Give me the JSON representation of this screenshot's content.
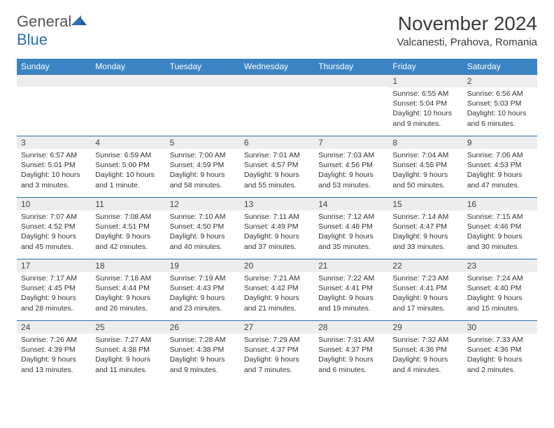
{
  "logo": {
    "text1": "General",
    "text2": "Blue"
  },
  "title": "November 2024",
  "location": "Valcanesti, Prahova, Romania",
  "colors": {
    "header_bg": "#3b84c4",
    "header_text": "#ffffff",
    "daynum_bg": "#ededed",
    "border": "#2b6fb0",
    "logo_blue": "#2b6fb0"
  },
  "weekdays": [
    "Sunday",
    "Monday",
    "Tuesday",
    "Wednesday",
    "Thursday",
    "Friday",
    "Saturday"
  ],
  "weeks": [
    [
      null,
      null,
      null,
      null,
      null,
      {
        "n": "1",
        "sr": "Sunrise: 6:55 AM",
        "ss": "Sunset: 5:04 PM",
        "d1": "Daylight: 10 hours",
        "d2": "and 9 minutes."
      },
      {
        "n": "2",
        "sr": "Sunrise: 6:56 AM",
        "ss": "Sunset: 5:03 PM",
        "d1": "Daylight: 10 hours",
        "d2": "and 6 minutes."
      }
    ],
    [
      {
        "n": "3",
        "sr": "Sunrise: 6:57 AM",
        "ss": "Sunset: 5:01 PM",
        "d1": "Daylight: 10 hours",
        "d2": "and 3 minutes."
      },
      {
        "n": "4",
        "sr": "Sunrise: 6:59 AM",
        "ss": "Sunset: 5:00 PM",
        "d1": "Daylight: 10 hours",
        "d2": "and 1 minute."
      },
      {
        "n": "5",
        "sr": "Sunrise: 7:00 AM",
        "ss": "Sunset: 4:59 PM",
        "d1": "Daylight: 9 hours",
        "d2": "and 58 minutes."
      },
      {
        "n": "6",
        "sr": "Sunrise: 7:01 AM",
        "ss": "Sunset: 4:57 PM",
        "d1": "Daylight: 9 hours",
        "d2": "and 55 minutes."
      },
      {
        "n": "7",
        "sr": "Sunrise: 7:03 AM",
        "ss": "Sunset: 4:56 PM",
        "d1": "Daylight: 9 hours",
        "d2": "and 53 minutes."
      },
      {
        "n": "8",
        "sr": "Sunrise: 7:04 AM",
        "ss": "Sunset: 4:55 PM",
        "d1": "Daylight: 9 hours",
        "d2": "and 50 minutes."
      },
      {
        "n": "9",
        "sr": "Sunrise: 7:06 AM",
        "ss": "Sunset: 4:53 PM",
        "d1": "Daylight: 9 hours",
        "d2": "and 47 minutes."
      }
    ],
    [
      {
        "n": "10",
        "sr": "Sunrise: 7:07 AM",
        "ss": "Sunset: 4:52 PM",
        "d1": "Daylight: 9 hours",
        "d2": "and 45 minutes."
      },
      {
        "n": "11",
        "sr": "Sunrise: 7:08 AM",
        "ss": "Sunset: 4:51 PM",
        "d1": "Daylight: 9 hours",
        "d2": "and 42 minutes."
      },
      {
        "n": "12",
        "sr": "Sunrise: 7:10 AM",
        "ss": "Sunset: 4:50 PM",
        "d1": "Daylight: 9 hours",
        "d2": "and 40 minutes."
      },
      {
        "n": "13",
        "sr": "Sunrise: 7:11 AM",
        "ss": "Sunset: 4:49 PM",
        "d1": "Daylight: 9 hours",
        "d2": "and 37 minutes."
      },
      {
        "n": "14",
        "sr": "Sunrise: 7:12 AM",
        "ss": "Sunset: 4:48 PM",
        "d1": "Daylight: 9 hours",
        "d2": "and 35 minutes."
      },
      {
        "n": "15",
        "sr": "Sunrise: 7:14 AM",
        "ss": "Sunset: 4:47 PM",
        "d1": "Daylight: 9 hours",
        "d2": "and 33 minutes."
      },
      {
        "n": "16",
        "sr": "Sunrise: 7:15 AM",
        "ss": "Sunset: 4:46 PM",
        "d1": "Daylight: 9 hours",
        "d2": "and 30 minutes."
      }
    ],
    [
      {
        "n": "17",
        "sr": "Sunrise: 7:17 AM",
        "ss": "Sunset: 4:45 PM",
        "d1": "Daylight: 9 hours",
        "d2": "and 28 minutes."
      },
      {
        "n": "18",
        "sr": "Sunrise: 7:18 AM",
        "ss": "Sunset: 4:44 PM",
        "d1": "Daylight: 9 hours",
        "d2": "and 26 minutes."
      },
      {
        "n": "19",
        "sr": "Sunrise: 7:19 AM",
        "ss": "Sunset: 4:43 PM",
        "d1": "Daylight: 9 hours",
        "d2": "and 23 minutes."
      },
      {
        "n": "20",
        "sr": "Sunrise: 7:21 AM",
        "ss": "Sunset: 4:42 PM",
        "d1": "Daylight: 9 hours",
        "d2": "and 21 minutes."
      },
      {
        "n": "21",
        "sr": "Sunrise: 7:22 AM",
        "ss": "Sunset: 4:41 PM",
        "d1": "Daylight: 9 hours",
        "d2": "and 19 minutes."
      },
      {
        "n": "22",
        "sr": "Sunrise: 7:23 AM",
        "ss": "Sunset: 4:41 PM",
        "d1": "Daylight: 9 hours",
        "d2": "and 17 minutes."
      },
      {
        "n": "23",
        "sr": "Sunrise: 7:24 AM",
        "ss": "Sunset: 4:40 PM",
        "d1": "Daylight: 9 hours",
        "d2": "and 15 minutes."
      }
    ],
    [
      {
        "n": "24",
        "sr": "Sunrise: 7:26 AM",
        "ss": "Sunset: 4:39 PM",
        "d1": "Daylight: 9 hours",
        "d2": "and 13 minutes."
      },
      {
        "n": "25",
        "sr": "Sunrise: 7:27 AM",
        "ss": "Sunset: 4:38 PM",
        "d1": "Daylight: 9 hours",
        "d2": "and 11 minutes."
      },
      {
        "n": "26",
        "sr": "Sunrise: 7:28 AM",
        "ss": "Sunset: 4:38 PM",
        "d1": "Daylight: 9 hours",
        "d2": "and 9 minutes."
      },
      {
        "n": "27",
        "sr": "Sunrise: 7:29 AM",
        "ss": "Sunset: 4:37 PM",
        "d1": "Daylight: 9 hours",
        "d2": "and 7 minutes."
      },
      {
        "n": "28",
        "sr": "Sunrise: 7:31 AM",
        "ss": "Sunset: 4:37 PM",
        "d1": "Daylight: 9 hours",
        "d2": "and 6 minutes."
      },
      {
        "n": "29",
        "sr": "Sunrise: 7:32 AM",
        "ss": "Sunset: 4:36 PM",
        "d1": "Daylight: 9 hours",
        "d2": "and 4 minutes."
      },
      {
        "n": "30",
        "sr": "Sunrise: 7:33 AM",
        "ss": "Sunset: 4:36 PM",
        "d1": "Daylight: 9 hours",
        "d2": "and 2 minutes."
      }
    ]
  ]
}
